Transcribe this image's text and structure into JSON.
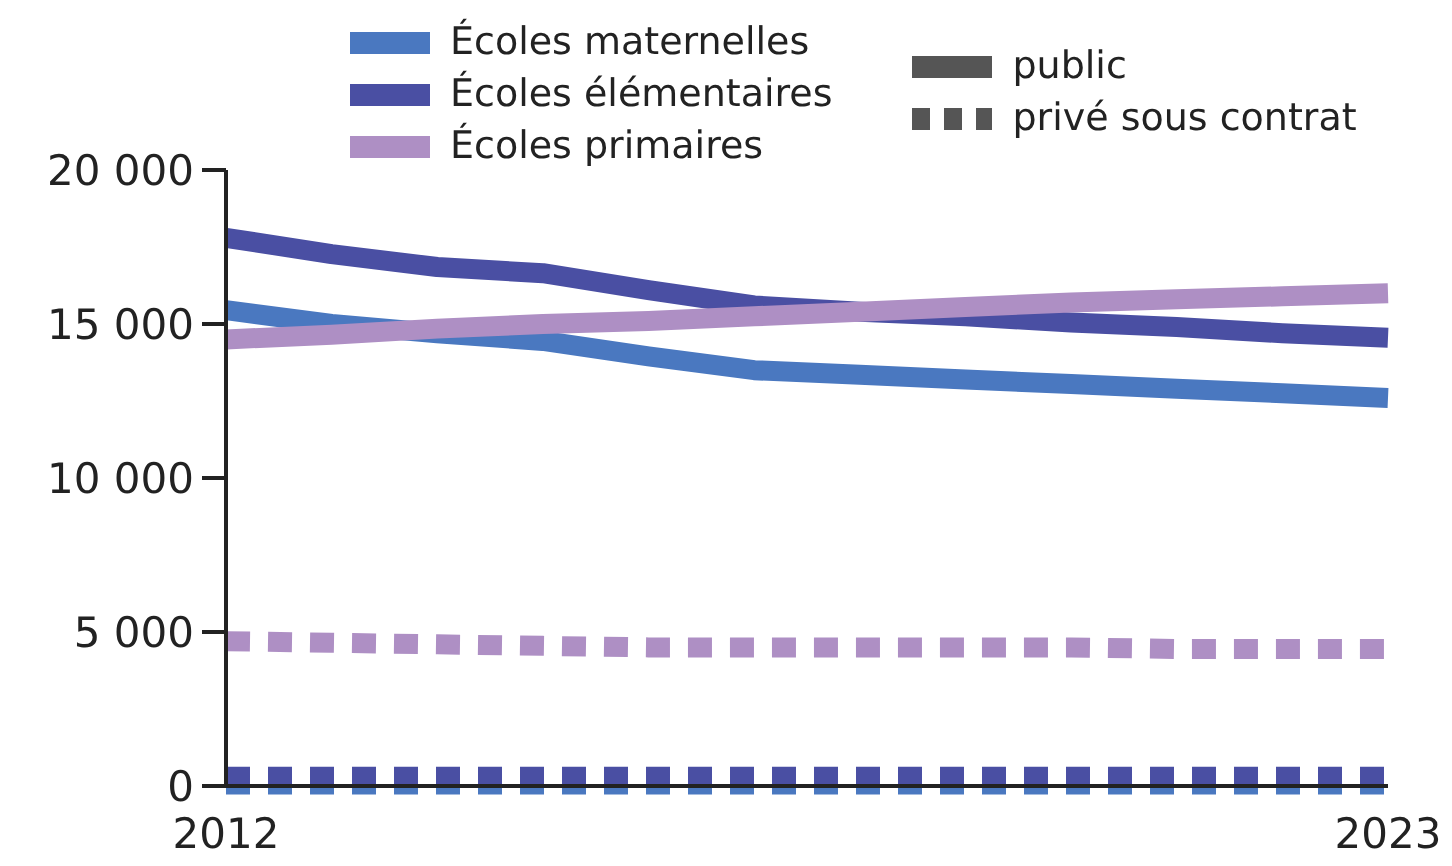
{
  "chart_data": {
    "type": "line",
    "x": [
      2012,
      2013,
      2014,
      2015,
      2016,
      2017,
      2018,
      2019,
      2020,
      2021,
      2022,
      2023
    ],
    "xlim": [
      2012,
      2023
    ],
    "xticks": [
      2012,
      2023
    ],
    "ylim": [
      0,
      20000
    ],
    "yticks": [
      {
        "value": 0,
        "label": "0"
      },
      {
        "value": 5000,
        "label": "5 000"
      },
      {
        "value": 10000,
        "label": "10 000"
      },
      {
        "value": 15000,
        "label": "15 000"
      },
      {
        "value": 20000,
        "label": "20 000"
      }
    ],
    "grid": false,
    "legend": "top",
    "marker": "none",
    "annotations": [
      "public",
      "privé sous contrat"
    ],
    "series": [
      {
        "name": "Écoles maternelles",
        "color": "#4a78c0",
        "line_style": "solid",
        "values": [
          15450,
          15000,
          14700,
          14450,
          13950,
          13500,
          13350,
          13200,
          13050,
          12900,
          12750,
          12600
        ]
      },
      {
        "name": "Écoles élémentaires",
        "color": "#4a4fa3",
        "line_style": "solid",
        "values": [
          17800,
          17270,
          16850,
          16650,
          16100,
          15600,
          15400,
          15250,
          15050,
          14900,
          14700,
          14550
        ]
      },
      {
        "name": "Écoles primaires",
        "color": "#ae8fc4",
        "line_style": "solid",
        "values": [
          14500,
          14650,
          14850,
          15000,
          15100,
          15250,
          15400,
          15550,
          15700,
          15800,
          15900,
          16000
        ]
      },
      {
        "color": "#4a78c0",
        "line_style": "dashed",
        "values": [
          50,
          50,
          50,
          50,
          50,
          50,
          50,
          50,
          50,
          50,
          50,
          50
        ]
      },
      {
        "color": "#4a4fa3",
        "line_style": "dashed",
        "values": [
          300,
          300,
          300,
          300,
          300,
          300,
          300,
          300,
          300,
          300,
          300,
          300
        ]
      },
      {
        "color": "#ae8fc4",
        "line_style": "dashed",
        "values": [
          4700,
          4650,
          4600,
          4550,
          4500,
          4500,
          4500,
          4500,
          4500,
          4450,
          4450,
          4450
        ]
      }
    ]
  }
}
